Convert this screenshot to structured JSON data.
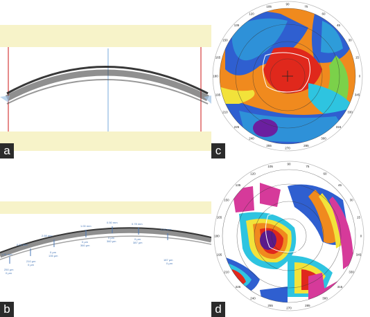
{
  "panels": {
    "a": {
      "label": "a"
    },
    "b": {
      "label": "b"
    },
    "c": {
      "label": "c"
    },
    "d": {
      "label": "d"
    }
  },
  "oct_b": {
    "measurements": [
      {
        "depth": "1.31 mm",
        "thickness": "250 µm",
        "sub": "0 µm"
      },
      {
        "depth": "0.51 mm",
        "thickness": "210 µm",
        "sub": "0 µm"
      },
      {
        "depth": "2.68 mm",
        "thickness": "0 µm",
        "sub": "135 µm"
      },
      {
        "depth": "1.00 mm",
        "thickness": "0 µm",
        "sub": "360 µm"
      },
      {
        "depth": "0.50 mm",
        "thickness": "0 µm",
        "sub": "360 µm"
      },
      {
        "depth": "0.78 mm",
        "thickness": "0 µm",
        "sub": "387 µm"
      },
      {
        "depth": "2.10 mm",
        "thickness": "187 µm",
        "sub": "0 µm"
      }
    ]
  },
  "map_c": {
    "ticks": [
      "90",
      "75",
      "60",
      "45",
      "30",
      "15",
      "0",
      "345",
      "330",
      "315",
      "300",
      "285",
      "270",
      "255",
      "240",
      "225",
      "210",
      "195",
      "180",
      "165",
      "150",
      "135",
      "120",
      "105"
    ],
    "colors": {
      "blue": "#2f5fd0",
      "cyan": "#2ec4e0",
      "green": "#7bd14a",
      "yellow": "#f2e23a",
      "orange": "#f08a1e",
      "red": "#e0281c",
      "purple": "#6b1fa0"
    }
  },
  "map_d": {
    "ticks": [
      "90",
      "75",
      "60",
      "45",
      "30",
      "15",
      "0",
      "345",
      "330",
      "315",
      "300",
      "285",
      "270",
      "255",
      "240",
      "225",
      "210",
      "195",
      "180",
      "165",
      "150",
      "135",
      "120",
      "105"
    ],
    "colors": {
      "magenta": "#d63a9a",
      "blue": "#2f5fd0",
      "cyan": "#2ec4e0",
      "green": "#8fd24e",
      "yellow": "#f2e23a",
      "orange": "#f08a1e",
      "red": "#e0281c",
      "purple": "#5a1a8a"
    }
  }
}
